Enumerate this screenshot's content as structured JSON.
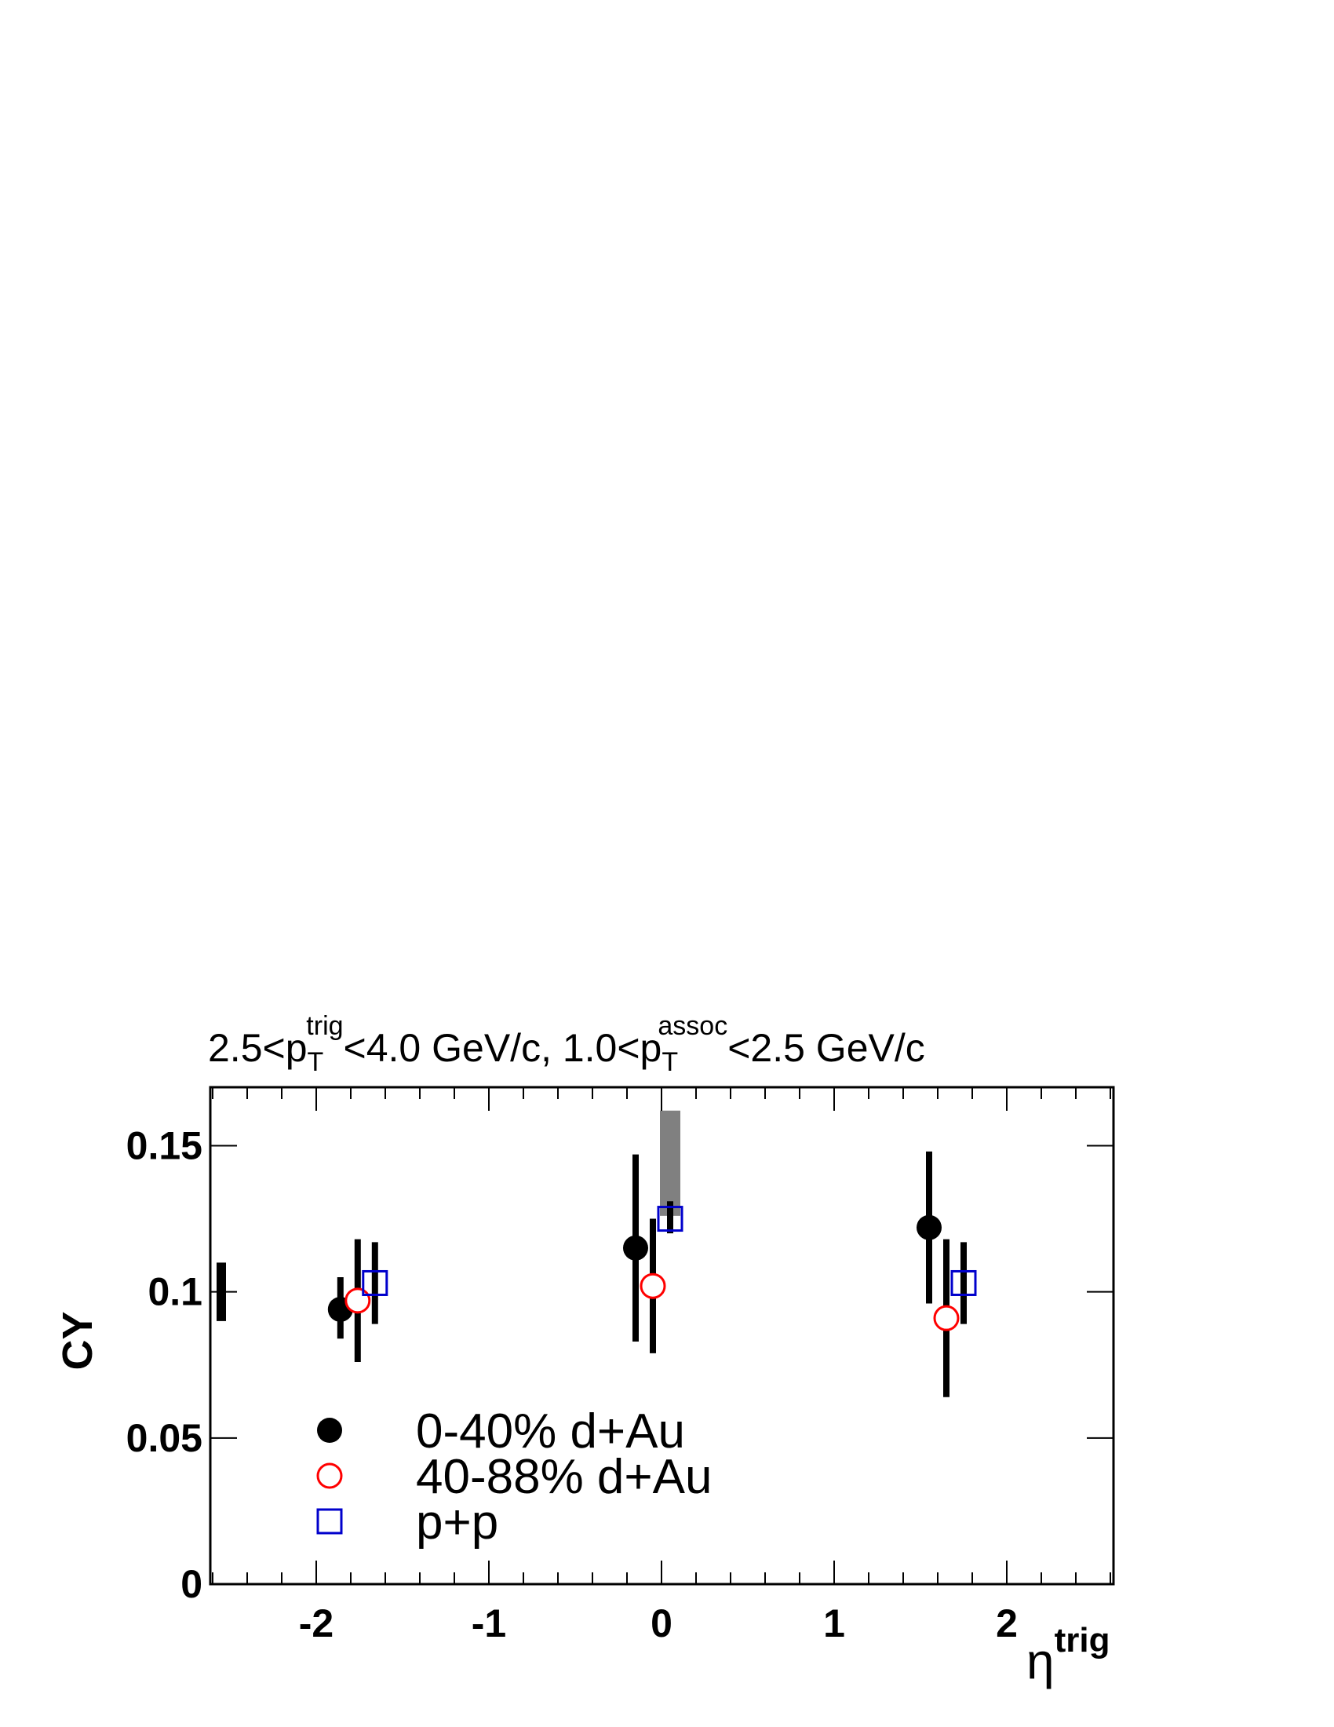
{
  "chart_data": {
    "type": "scatter",
    "title_parts": {
      "a": "2.5<p",
      "a_sub": "T",
      "a_sup": "trig",
      "b": "<4.0 GeV/c, 1.0<p",
      "b_sub": "T",
      "b_sup": "assoc",
      "c": "<2.5 GeV/c"
    },
    "ylabel": "CY",
    "xlabel_main": "η",
    "xlabel_sup": "trig",
    "xlim": [
      -2.6,
      2.6
    ],
    "ylim": [
      0,
      0.17
    ],
    "x_ticks": [
      -2,
      -1,
      0,
      1,
      2
    ],
    "x_tick_labels": [
      "-2",
      "-1",
      "0",
      "1",
      "2"
    ],
    "y_ticks": [
      0,
      0.05,
      0.1,
      0.15
    ],
    "y_tick_labels": [
      "0",
      "0.05",
      "0.1",
      "0.15"
    ],
    "grid": false,
    "legend_position": "bottom-left",
    "series": [
      {
        "name": "0-40% d+Au",
        "marker": "filled-circle",
        "color": "#000000",
        "points": [
          {
            "x": -1.86,
            "y": 0.094,
            "ylo": 0.084,
            "yhi": 0.105
          },
          {
            "x": -0.15,
            "y": 0.115,
            "ylo": 0.083,
            "yhi": 0.147
          },
          {
            "x": 1.55,
            "y": 0.122,
            "ylo": 0.096,
            "yhi": 0.148
          }
        ]
      },
      {
        "name": "40-88% d+Au",
        "marker": "open-circle",
        "color": "#ff0000",
        "points": [
          {
            "x": -1.76,
            "y": 0.097,
            "ylo": 0.076,
            "yhi": 0.118
          },
          {
            "x": -0.05,
            "y": 0.102,
            "ylo": 0.079,
            "yhi": 0.125
          },
          {
            "x": 1.65,
            "y": 0.091,
            "ylo": 0.064,
            "yhi": 0.118
          }
        ]
      },
      {
        "name": "p+p",
        "marker": "open-square",
        "color": "#0000cc",
        "points": [
          {
            "x": -1.66,
            "y": 0.103,
            "ylo": 0.089,
            "yhi": 0.117
          },
          {
            "x": 0.05,
            "y": 0.125,
            "ylo": 0.12,
            "yhi": 0.131
          },
          {
            "x": 1.75,
            "y": 0.103,
            "ylo": 0.089,
            "yhi": 0.117
          }
        ]
      }
    ],
    "systematic_band": {
      "x": 0.05,
      "ylo": 0.126,
      "yhi": 0.162,
      "color": "#808080"
    },
    "normalization_bar": {
      "x": -2.55,
      "ylo": 0.09,
      "yhi": 0.11,
      "color": "#000000"
    }
  }
}
